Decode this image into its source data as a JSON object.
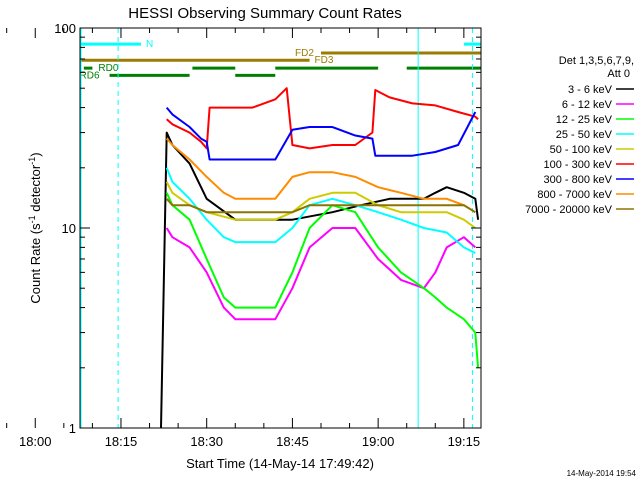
{
  "chart_data": {
    "type": "line",
    "title": "HESSI Observing Summary Count Rates",
    "xlabel": "Start Time (14-May-14 17:49:42)",
    "ylabel_base": "Count Rate (s",
    "ylabel_sup": "-1",
    "ylabel_tail": " detector",
    "ylabel_close": ")",
    "y_scale": "log",
    "ylim": [
      1,
      100
    ],
    "xlim_minutes": [
      17.83,
      88.0
    ],
    "x_ticks": [
      {
        "minute": 10,
        "label": "18:00"
      },
      {
        "minute": 25,
        "label": "18:15"
      },
      {
        "minute": 40,
        "label": "18:30"
      },
      {
        "minute": 55,
        "label": "18:45"
      },
      {
        "minute": 70,
        "label": "19:00"
      },
      {
        "minute": 85,
        "label": "19:15"
      }
    ],
    "y_ticks": [
      {
        "value": 1,
        "label": "1"
      },
      {
        "value": 10,
        "label": "10"
      },
      {
        "value": 100,
        "label": "100"
      }
    ],
    "legend_title_1": "Det 1,3,5,6,7,9,",
    "legend_title_2": "Att 0",
    "legend_placement": "right",
    "series": [
      {
        "name": "3 - 6 keV",
        "color": "#000000",
        "points": [
          [
            32,
            1
          ],
          [
            33,
            30
          ],
          [
            34,
            26
          ],
          [
            37,
            21
          ],
          [
            40,
            14
          ],
          [
            45,
            11
          ],
          [
            55,
            11
          ],
          [
            62,
            12
          ],
          [
            67,
            13
          ],
          [
            72,
            14
          ],
          [
            78,
            14
          ],
          [
            80,
            15
          ],
          [
            82,
            16
          ],
          [
            85,
            15
          ],
          [
            87,
            14
          ],
          [
            87.5,
            11
          ]
        ]
      },
      {
        "name": "6 - 12 keV",
        "color": "#ff00ff",
        "points": [
          [
            33,
            10
          ],
          [
            34,
            9
          ],
          [
            37,
            8
          ],
          [
            40,
            6
          ],
          [
            43,
            4
          ],
          [
            45,
            3.5
          ],
          [
            52,
            3.5
          ],
          [
            55,
            5
          ],
          [
            58,
            8
          ],
          [
            62,
            10
          ],
          [
            66,
            10
          ],
          [
            70,
            7
          ],
          [
            74,
            5.5
          ],
          [
            78,
            5
          ],
          [
            80,
            6
          ],
          [
            82,
            8
          ],
          [
            85,
            9
          ],
          [
            87,
            8
          ]
        ]
      },
      {
        "name": "12 - 25 keV",
        "color": "#00ff00",
        "points": [
          [
            33,
            15
          ],
          [
            34,
            13
          ],
          [
            37,
            11
          ],
          [
            40,
            7
          ],
          [
            43,
            4.5
          ],
          [
            45,
            4
          ],
          [
            52,
            4
          ],
          [
            55,
            6
          ],
          [
            58,
            10
          ],
          [
            62,
            13
          ],
          [
            66,
            12
          ],
          [
            70,
            8
          ],
          [
            74,
            6
          ],
          [
            78,
            5
          ],
          [
            80,
            4.5
          ],
          [
            82,
            4
          ],
          [
            85,
            3.5
          ],
          [
            87,
            3
          ],
          [
            87.5,
            2
          ]
        ]
      },
      {
        "name": "25 - 50 keV",
        "color": "#00ffff",
        "points": [
          [
            33,
            20
          ],
          [
            34,
            17
          ],
          [
            37,
            14
          ],
          [
            40,
            11
          ],
          [
            43,
            9
          ],
          [
            45,
            8.5
          ],
          [
            52,
            8.5
          ],
          [
            55,
            10
          ],
          [
            58,
            13
          ],
          [
            62,
            14
          ],
          [
            66,
            13
          ],
          [
            70,
            12
          ],
          [
            74,
            11
          ],
          [
            78,
            10
          ],
          [
            82,
            9.5
          ],
          [
            85,
            8
          ],
          [
            87,
            7.5
          ]
        ]
      },
      {
        "name": "50 - 100 keV",
        "color": "#cccc00",
        "points": [
          [
            33,
            17
          ],
          [
            34,
            15
          ],
          [
            37,
            13
          ],
          [
            40,
            12
          ],
          [
            45,
            11
          ],
          [
            52,
            11
          ],
          [
            55,
            12
          ],
          [
            58,
            14
          ],
          [
            62,
            15
          ],
          [
            66,
            15
          ],
          [
            70,
            13
          ],
          [
            74,
            12
          ],
          [
            78,
            12
          ],
          [
            82,
            12
          ],
          [
            85,
            11
          ],
          [
            87,
            10
          ]
        ]
      },
      {
        "name": "100 - 300 keV",
        "color": "#ff0000",
        "points": [
          [
            33,
            35
          ],
          [
            34,
            33
          ],
          [
            37,
            30
          ],
          [
            39,
            27
          ],
          [
            40,
            25
          ],
          [
            40.5,
            40
          ],
          [
            44,
            40
          ],
          [
            48,
            40
          ],
          [
            52,
            44
          ],
          [
            54,
            50
          ],
          [
            55,
            26
          ],
          [
            58,
            25
          ],
          [
            62,
            26
          ],
          [
            66,
            26
          ],
          [
            69,
            30
          ],
          [
            69.5,
            49
          ],
          [
            72,
            45
          ],
          [
            76,
            42
          ],
          [
            80,
            41
          ],
          [
            84,
            38
          ],
          [
            87,
            36
          ],
          [
            87.5,
            35
          ]
        ]
      },
      {
        "name": "300 - 800 keV",
        "color": "#0000ff",
        "points": [
          [
            33,
            40
          ],
          [
            34,
            37
          ],
          [
            37,
            32
          ],
          [
            39,
            28
          ],
          [
            40,
            27
          ],
          [
            40.5,
            22
          ],
          [
            44,
            22
          ],
          [
            48,
            22
          ],
          [
            52,
            22
          ],
          [
            55,
            31
          ],
          [
            58,
            32
          ],
          [
            62,
            32
          ],
          [
            66,
            29
          ],
          [
            69,
            28
          ],
          [
            69.5,
            23
          ],
          [
            72,
            23
          ],
          [
            76,
            23
          ],
          [
            80,
            24
          ],
          [
            84,
            26
          ],
          [
            87,
            38
          ]
        ]
      },
      {
        "name": "800 - 7000 keV",
        "color": "#ff8c00",
        "points": [
          [
            33,
            28
          ],
          [
            34,
            26
          ],
          [
            37,
            22
          ],
          [
            40,
            18
          ],
          [
            43,
            15
          ],
          [
            45,
            14
          ],
          [
            52,
            14
          ],
          [
            55,
            18
          ],
          [
            58,
            19
          ],
          [
            62,
            19
          ],
          [
            66,
            18
          ],
          [
            70,
            16
          ],
          [
            74,
            15
          ],
          [
            78,
            14
          ],
          [
            82,
            14
          ],
          [
            85,
            13
          ],
          [
            87,
            12
          ]
        ]
      },
      {
        "name": "7000 - 20000 keV",
        "color": "#8b7500",
        "points": [
          [
            33,
            14
          ],
          [
            34,
            13
          ],
          [
            37,
            13
          ],
          [
            40,
            12
          ],
          [
            45,
            12
          ],
          [
            52,
            12
          ],
          [
            55,
            12
          ],
          [
            58,
            13
          ],
          [
            62,
            13
          ],
          [
            66,
            13
          ],
          [
            70,
            13
          ],
          [
            74,
            13
          ],
          [
            78,
            13
          ],
          [
            82,
            13
          ],
          [
            85,
            13
          ],
          [
            87,
            12
          ]
        ]
      }
    ],
    "flag_bars": [
      {
        "name": "N",
        "color": "#00ffff",
        "segments": [
          [
            17.9,
            28.5
          ],
          [
            85.0,
            88.0
          ]
        ],
        "level": 83
      },
      {
        "name": "FD2",
        "color": "#9a7d00",
        "segments": [
          [
            60.0,
            88.0
          ]
        ],
        "level": 75
      },
      {
        "name": "FD3",
        "color": "#9a7d00",
        "segments": [
          [
            17.9,
            58.0
          ]
        ],
        "level": 69
      },
      {
        "name": "RD0",
        "color": "#008000",
        "segments": [
          [
            18.5,
            20.0
          ],
          [
            37.5,
            45.0
          ],
          [
            52.0,
            70.0
          ],
          [
            75.0,
            88.0
          ]
        ],
        "level": 63
      },
      {
        "name": "RD6",
        "color": "#008000",
        "segments": [
          [
            23.0,
            37.0
          ],
          [
            45.0,
            52.0
          ]
        ],
        "level": 58
      }
    ],
    "vlines": [
      {
        "minute": 18.0,
        "color": "#00ffff",
        "style": "solid"
      },
      {
        "minute": 24.5,
        "color": "#00ffff",
        "style": "dashed"
      },
      {
        "minute": 77.0,
        "color": "#00ffff",
        "style": "solid"
      },
      {
        "minute": 86.5,
        "color": "#00ffff",
        "style": "dashed"
      }
    ]
  },
  "footer": {
    "timestamp": "14-May-2014 19:54"
  }
}
